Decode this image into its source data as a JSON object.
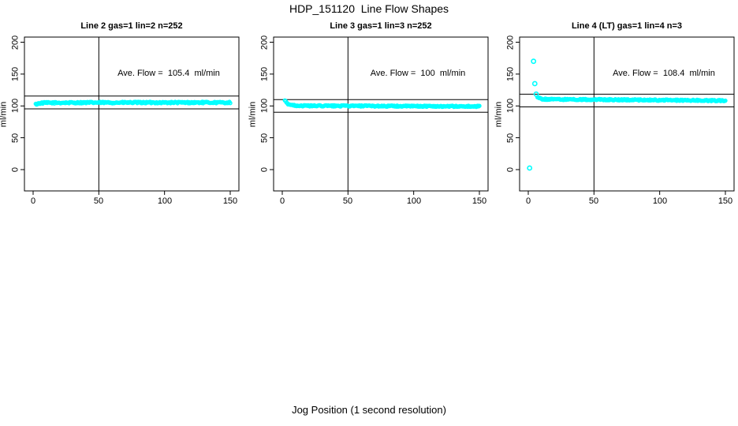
{
  "chart_data": {
    "type": "scatter",
    "title": "HDP_151120  Line Flow Shapes",
    "xlabel": "Jog Position (1 second resolution)",
    "ylabel": "ml/min",
    "point_color": "#00ffff",
    "axis_color": "#000000",
    "grid": false,
    "xlim": [
      0,
      150
    ],
    "ylim": [
      0,
      200
    ],
    "x_ticks": [
      0,
      50,
      100,
      150
    ],
    "y_ticks": [
      0,
      50,
      100,
      150,
      200
    ],
    "vline_x": 50,
    "panels": [
      {
        "title": "Line 2 gas=1 lin=2 n=252",
        "annotation": "Ave. Flow =  105.4  ml/min",
        "ave_flow": 105.4,
        "n": 252,
        "ref_line_high": 115.4,
        "ref_line_low": 95.4,
        "series_profile": [
          [
            2,
            102.5
          ],
          [
            3,
            103.2
          ],
          [
            5,
            104.2
          ],
          [
            8,
            104.8
          ],
          [
            40,
            105.2
          ],
          [
            150,
            105.3
          ]
        ],
        "x_start": 2,
        "x_end": 150,
        "n_points": 252,
        "jitter": 1.2,
        "outliers": []
      },
      {
        "title": "Line 3 gas=1 lin=3 n=252",
        "annotation": "Ave. Flow =  100  ml/min",
        "ave_flow": 100,
        "n": 252,
        "ref_line_high": 110,
        "ref_line_low": 90,
        "series_profile": [
          [
            2,
            108.5
          ],
          [
            3,
            105.5
          ],
          [
            4,
            103.5
          ],
          [
            6,
            102
          ],
          [
            9,
            100.8
          ],
          [
            15,
            100.2
          ],
          [
            60,
            99.9
          ],
          [
            150,
            99.2
          ]
        ],
        "x_start": 2,
        "x_end": 150,
        "n_points": 252,
        "jitter": 1.0,
        "outliers": []
      },
      {
        "title": "Line 4 (LT) gas=1 lin=4 n=3",
        "annotation": "Ave. Flow =  108.4  ml/min",
        "ave_flow": 108.4,
        "n": 3,
        "ref_line_high": 118.4,
        "ref_line_low": 98.4,
        "series_profile": [
          [
            7,
            114
          ],
          [
            8,
            112.5
          ],
          [
            10,
            111
          ],
          [
            15,
            110.3
          ],
          [
            40,
            110
          ],
          [
            90,
            109.3
          ],
          [
            150,
            108.2
          ]
        ],
        "x_start": 7,
        "x_end": 150,
        "n_points": 240,
        "jitter": 1.0,
        "outliers": [
          [
            1,
            2.5
          ],
          [
            4,
            170
          ],
          [
            5,
            135
          ],
          [
            6,
            118.5
          ]
        ]
      }
    ]
  }
}
